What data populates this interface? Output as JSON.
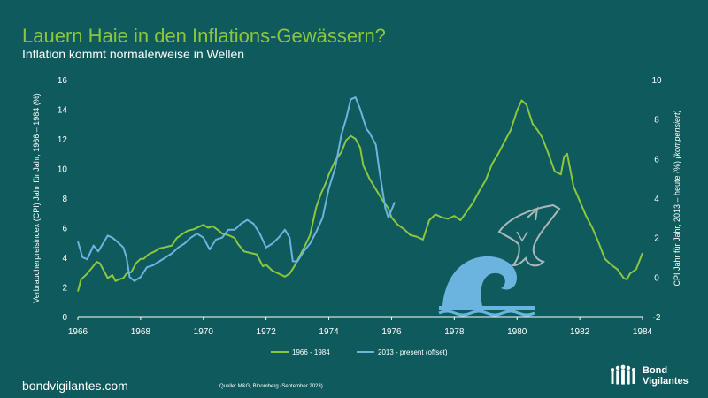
{
  "title": "Lauern Haie in den Inflations-Gewässern?",
  "subtitle": "Inflation kommt normalerweise in Wellen",
  "brand_url": "bondvigilantes.com",
  "source": "Quelle: M&G, Bloomberg (September 2023)",
  "logo": {
    "line1": "Bond",
    "line2": "Vigilantes",
    "icon": "people-silhouette-icon"
  },
  "colors": {
    "background": "#0f5a5c",
    "green": "#8cc63f",
    "blue": "#6cb4e0",
    "wave": "#6cb4e0",
    "shark": "#9fb3b8"
  },
  "chart_data": {
    "type": "line",
    "title": "",
    "ylabel_left": "Verbraucherpreisindex (CPI) Jahr für Jahr, 1966 – 1984 (%)",
    "ylabel_right_main": "CPI Jahr für Jahr, 2013 – heute (%)",
    "ylabel_right_italic": "(kompensiert)",
    "x_ticks": [
      "1966",
      "1968",
      "1970",
      "1972",
      "1974",
      "1976",
      "1978",
      "1980",
      "1982",
      "1984"
    ],
    "xlim": [
      1966,
      1984
    ],
    "y_left_ticks": [
      "0",
      "2",
      "4",
      "6",
      "8",
      "10",
      "12",
      "14",
      "16"
    ],
    "ylim_left": [
      0,
      16
    ],
    "y_right_ticks": [
      "-2",
      "0",
      "2",
      "4",
      "6",
      "8",
      "10"
    ],
    "ylim_right": [
      -2,
      10
    ],
    "grid": false,
    "legend_position": "bottom-center",
    "series": [
      {
        "name": "1966 - 1984",
        "axis": "left",
        "x": [
          1966.0,
          1966.1,
          1966.2,
          1966.3,
          1966.45,
          1966.6,
          1966.7,
          1966.8,
          1966.95,
          1967.1,
          1967.2,
          1967.3,
          1967.45,
          1967.55,
          1967.7,
          1967.85,
          1968.0,
          1968.1,
          1968.25,
          1968.45,
          1968.6,
          1968.8,
          1969.0,
          1969.15,
          1969.35,
          1969.5,
          1969.7,
          1969.9,
          1970.0,
          1970.15,
          1970.3,
          1970.5,
          1970.6,
          1970.8,
          1971.0,
          1971.1,
          1971.3,
          1971.5,
          1971.7,
          1971.9,
          1972.0,
          1972.2,
          1972.4,
          1972.6,
          1972.75,
          1972.9,
          1973.0,
          1973.2,
          1973.4,
          1973.6,
          1973.75,
          1973.9,
          1974.0,
          1974.2,
          1974.4,
          1974.55,
          1974.7,
          1974.85,
          1975.0,
          1975.1,
          1975.3,
          1975.5,
          1975.7,
          1975.9,
          1976.0,
          1976.2,
          1976.4,
          1976.6,
          1976.8,
          1977.0,
          1977.2,
          1977.4,
          1977.6,
          1977.8,
          1978.0,
          1978.2,
          1978.4,
          1978.6,
          1978.8,
          1979.0,
          1979.2,
          1979.4,
          1979.6,
          1979.8,
          1980.0,
          1980.15,
          1980.3,
          1980.5,
          1980.65,
          1980.8,
          1981.0,
          1981.2,
          1981.4,
          1981.5,
          1981.6,
          1981.8,
          1982.0,
          1982.2,
          1982.4,
          1982.6,
          1982.8,
          1983.0,
          1983.2,
          1983.4,
          1983.5,
          1983.6,
          1983.8,
          1984.0
        ],
        "values": [
          1.7,
          2.5,
          2.7,
          2.9,
          3.3,
          3.7,
          3.6,
          3.2,
          2.6,
          2.8,
          2.4,
          2.5,
          2.6,
          2.9,
          3.0,
          3.6,
          3.9,
          3.9,
          4.2,
          4.4,
          4.6,
          4.7,
          4.8,
          5.3,
          5.6,
          5.8,
          5.9,
          6.1,
          6.2,
          6.0,
          6.1,
          5.8,
          5.6,
          5.5,
          5.3,
          4.9,
          4.4,
          4.3,
          4.2,
          3.4,
          3.5,
          3.1,
          2.9,
          2.7,
          2.9,
          3.4,
          3.8,
          4.6,
          5.5,
          7.4,
          8.3,
          9.0,
          9.6,
          10.5,
          11.1,
          11.9,
          12.2,
          12.0,
          11.4,
          10.2,
          9.3,
          8.6,
          7.9,
          7.3,
          6.7,
          6.2,
          5.9,
          5.5,
          5.4,
          5.2,
          6.5,
          6.9,
          6.7,
          6.6,
          6.8,
          6.5,
          7.1,
          7.7,
          8.5,
          9.2,
          10.3,
          11.0,
          11.8,
          12.6,
          13.9,
          14.6,
          14.3,
          13.0,
          12.6,
          12.1,
          11.0,
          9.8,
          9.6,
          10.8,
          11.0,
          8.8,
          7.8,
          6.8,
          6.0,
          5.0,
          3.9,
          3.5,
          3.2,
          2.6,
          2.5,
          2.9,
          3.2,
          4.3
        ]
      },
      {
        "name": "2013 - present (offset)",
        "axis": "right",
        "x": [
          1966.0,
          1966.15,
          1966.3,
          1966.5,
          1966.65,
          1966.8,
          1966.95,
          1967.1,
          1967.25,
          1967.45,
          1967.55,
          1967.65,
          1967.8,
          1968.0,
          1968.2,
          1968.4,
          1968.6,
          1968.8,
          1969.0,
          1969.2,
          1969.4,
          1969.6,
          1969.8,
          1970.0,
          1970.2,
          1970.4,
          1970.6,
          1970.8,
          1971.0,
          1971.2,
          1971.4,
          1971.6,
          1971.8,
          1972.0,
          1972.2,
          1972.4,
          1972.6,
          1972.75,
          1972.85,
          1973.0,
          1973.2,
          1973.4,
          1973.6,
          1973.8,
          1974.0,
          1974.2,
          1974.4,
          1974.55,
          1974.7,
          1974.85,
          1975.0,
          1975.1,
          1975.2,
          1975.3,
          1975.4,
          1975.5,
          1975.6,
          1975.7,
          1975.8,
          1975.9,
          1976.0,
          1976.1
        ],
        "values": [
          1.8,
          1.0,
          0.9,
          1.6,
          1.3,
          1.7,
          2.1,
          2.0,
          1.8,
          1.5,
          1.0,
          0.0,
          -0.2,
          0.0,
          0.5,
          0.6,
          0.8,
          1.0,
          1.2,
          1.5,
          1.7,
          2.0,
          2.2,
          2.0,
          1.4,
          1.9,
          2.0,
          2.4,
          2.4,
          2.7,
          2.9,
          2.7,
          2.2,
          1.5,
          1.7,
          2.0,
          2.4,
          2.0,
          0.8,
          0.8,
          1.3,
          1.7,
          2.3,
          3.0,
          4.5,
          5.5,
          7.2,
          8.0,
          9.0,
          9.1,
          8.5,
          8.0,
          7.5,
          7.3,
          7.0,
          6.7,
          5.5,
          4.5,
          3.5,
          3.0,
          3.4,
          3.8
        ]
      }
    ]
  },
  "decorations": {
    "wave": "ocean-wave-icon",
    "shark": "jumping-shark-icon"
  }
}
